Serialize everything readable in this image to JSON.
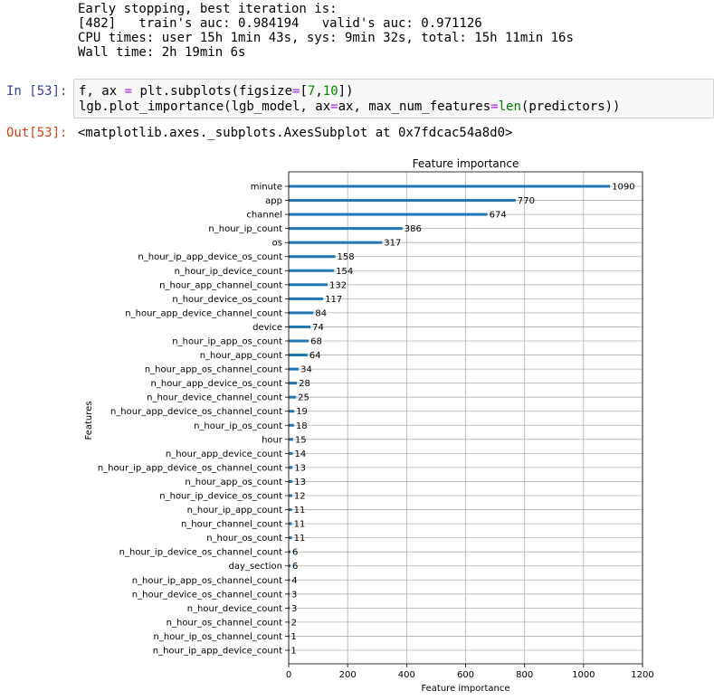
{
  "stream_output": [
    "Early stopping, best iteration is:",
    "[482]   train's auc: 0.984194   valid's auc: 0.971126",
    "CPU times: user 15h 1min 43s, sys: 9min 32s, total: 15h 11min 16s",
    "Wall time: 2h 19min 6s"
  ],
  "input_prompt": "In [53]:",
  "code_lines": [
    [
      {
        "t": "f, ax ",
        "c": ""
      },
      {
        "t": "=",
        "c": "op"
      },
      {
        "t": " plt.subplots(figsize",
        "c": ""
      },
      {
        "t": "=",
        "c": "op"
      },
      {
        "t": "[",
        "c": ""
      },
      {
        "t": "7",
        "c": "num"
      },
      {
        "t": ",",
        "c": ""
      },
      {
        "t": "10",
        "c": "num"
      },
      {
        "t": "])",
        "c": ""
      }
    ],
    [
      {
        "t": "lgb.plot_importance(lgb_model, ax",
        "c": ""
      },
      {
        "t": "=",
        "c": "op"
      },
      {
        "t": "ax, max_num_features",
        "c": ""
      },
      {
        "t": "=",
        "c": "op"
      },
      {
        "t": "len",
        "c": "bi"
      },
      {
        "t": "(predictors))",
        "c": ""
      }
    ]
  ],
  "output_prompt": "Out[53]:",
  "output_text": "<matplotlib.axes._subplots.AxesSubplot at 0x7fdcac54a8d0>",
  "chart_data": {
    "type": "bar",
    "orientation": "horizontal",
    "title": "Feature importance",
    "xlabel": "Feature importance",
    "ylabel": "Features",
    "xlim": [
      0,
      1200
    ],
    "xticks": [
      0,
      200,
      400,
      600,
      800,
      1000,
      1200
    ],
    "grid": true,
    "bar_color": "#1f77b4",
    "categories": [
      "minute",
      "app",
      "channel",
      "n_hour_ip_count",
      "os",
      "n_hour_ip_app_device_os_count",
      "n_hour_ip_device_count",
      "n_hour_app_channel_count",
      "n_hour_device_os_count",
      "n_hour_app_device_channel_count",
      "device",
      "n_hour_ip_app_os_count",
      "n_hour_app_count",
      "n_hour_app_os_channel_count",
      "n_hour_app_device_os_count",
      "n_hour_device_channel_count",
      "n_hour_app_device_os_channel_count",
      "n_hour_ip_os_count",
      "hour",
      "n_hour_app_device_count",
      "n_hour_ip_app_device_os_channel_count",
      "n_hour_app_os_count",
      "n_hour_ip_device_os_count",
      "n_hour_ip_app_count",
      "n_hour_channel_count",
      "n_hour_os_count",
      "n_hour_ip_device_os_channel_count",
      "day_section",
      "n_hour_ip_app_os_channel_count",
      "n_hour_device_os_channel_count",
      "n_hour_device_count",
      "n_hour_os_channel_count",
      "n_hour_ip_os_channel_count",
      "n_hour_ip_app_device_count"
    ],
    "values": [
      1090,
      770,
      674,
      386,
      317,
      158,
      154,
      132,
      117,
      84,
      74,
      68,
      64,
      34,
      28,
      25,
      19,
      18,
      15,
      14,
      13,
      13,
      12,
      11,
      11,
      11,
      6,
      6,
      4,
      3,
      3,
      2,
      1,
      1
    ]
  }
}
